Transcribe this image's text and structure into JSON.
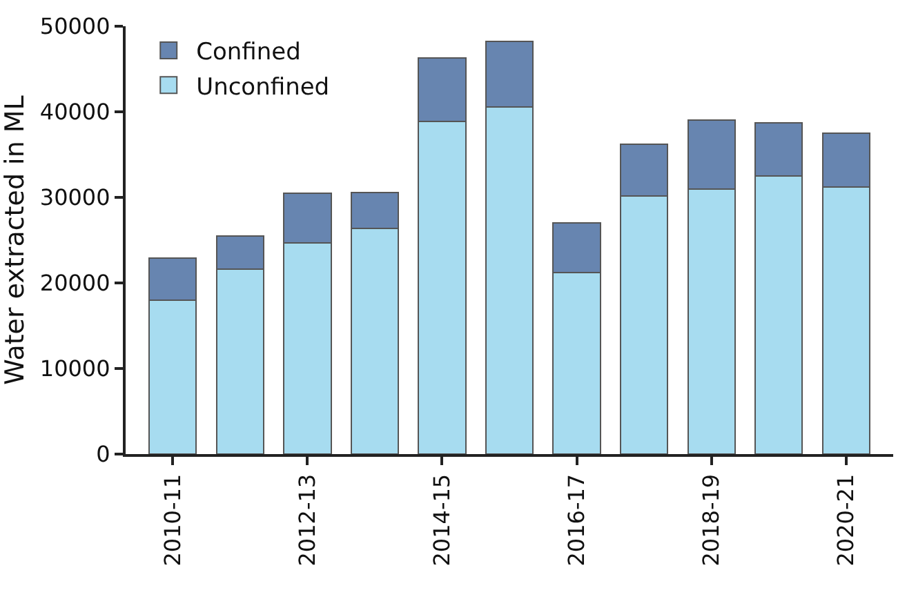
{
  "chart_data": {
    "type": "bar",
    "stacked": true,
    "ylabel": "Water extracted in ML",
    "categories": [
      "2010-11",
      null,
      "2012-13",
      null,
      "2014-15",
      null,
      "2016-17",
      null,
      "2018-19",
      null,
      "2020-21"
    ],
    "series": [
      {
        "name": "Unconfined",
        "color": "#a7dcf0",
        "values": [
          18000,
          21600,
          24700,
          26400,
          38900,
          40600,
          21200,
          30200,
          31000,
          32500,
          31200
        ]
      },
      {
        "name": "Confined",
        "color": "#6785b0",
        "values": [
          4900,
          3900,
          5800,
          4200,
          7400,
          7600,
          5800,
          6000,
          8000,
          6200,
          6300
        ]
      }
    ],
    "ylim": [
      0,
      50000
    ],
    "yticks": [
      0,
      10000,
      20000,
      30000,
      40000,
      50000
    ],
    "legend": "top left"
  }
}
